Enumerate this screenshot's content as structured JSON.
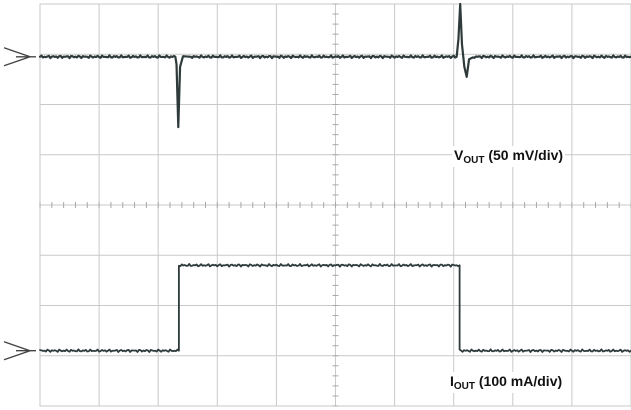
{
  "chart_data": {
    "type": "line",
    "grid": true,
    "x_divisions": 10,
    "y_divisions": 8,
    "series": [
      {
        "name": "VOUT",
        "label_main": "V",
        "label_sub": "OUT",
        "label_rest": " (50 mV/div)",
        "baseline_div": 6.95,
        "points_div": [
          [
            0.0,
            6.95
          ],
          [
            1.5,
            6.95
          ],
          [
            2.29,
            6.95
          ],
          [
            2.31,
            6.8
          ],
          [
            2.34,
            5.55
          ],
          [
            2.37,
            6.75
          ],
          [
            2.42,
            6.96
          ],
          [
            2.55,
            6.95
          ],
          [
            7.05,
            6.95
          ],
          [
            7.08,
            7.3
          ],
          [
            7.11,
            8.0
          ],
          [
            7.14,
            7.2
          ],
          [
            7.18,
            6.75
          ],
          [
            7.22,
            6.55
          ],
          [
            7.26,
            6.9
          ],
          [
            7.35,
            6.95
          ],
          [
            10.0,
            6.95
          ]
        ]
      },
      {
        "name": "IOUT",
        "label_main": "I",
        "label_sub": "OUT",
        "label_rest": " (100 mA/div)",
        "baseline_div": 1.1,
        "points_div": [
          [
            0.0,
            1.1
          ],
          [
            2.35,
            1.1
          ],
          [
            2.35,
            2.8
          ],
          [
            7.1,
            2.8
          ],
          [
            7.1,
            1.1
          ],
          [
            10.0,
            1.1
          ]
        ]
      }
    ]
  },
  "colors": {
    "trace": "#2f3a3a",
    "grid": "#c9c9c9",
    "background": "#ffffff"
  }
}
